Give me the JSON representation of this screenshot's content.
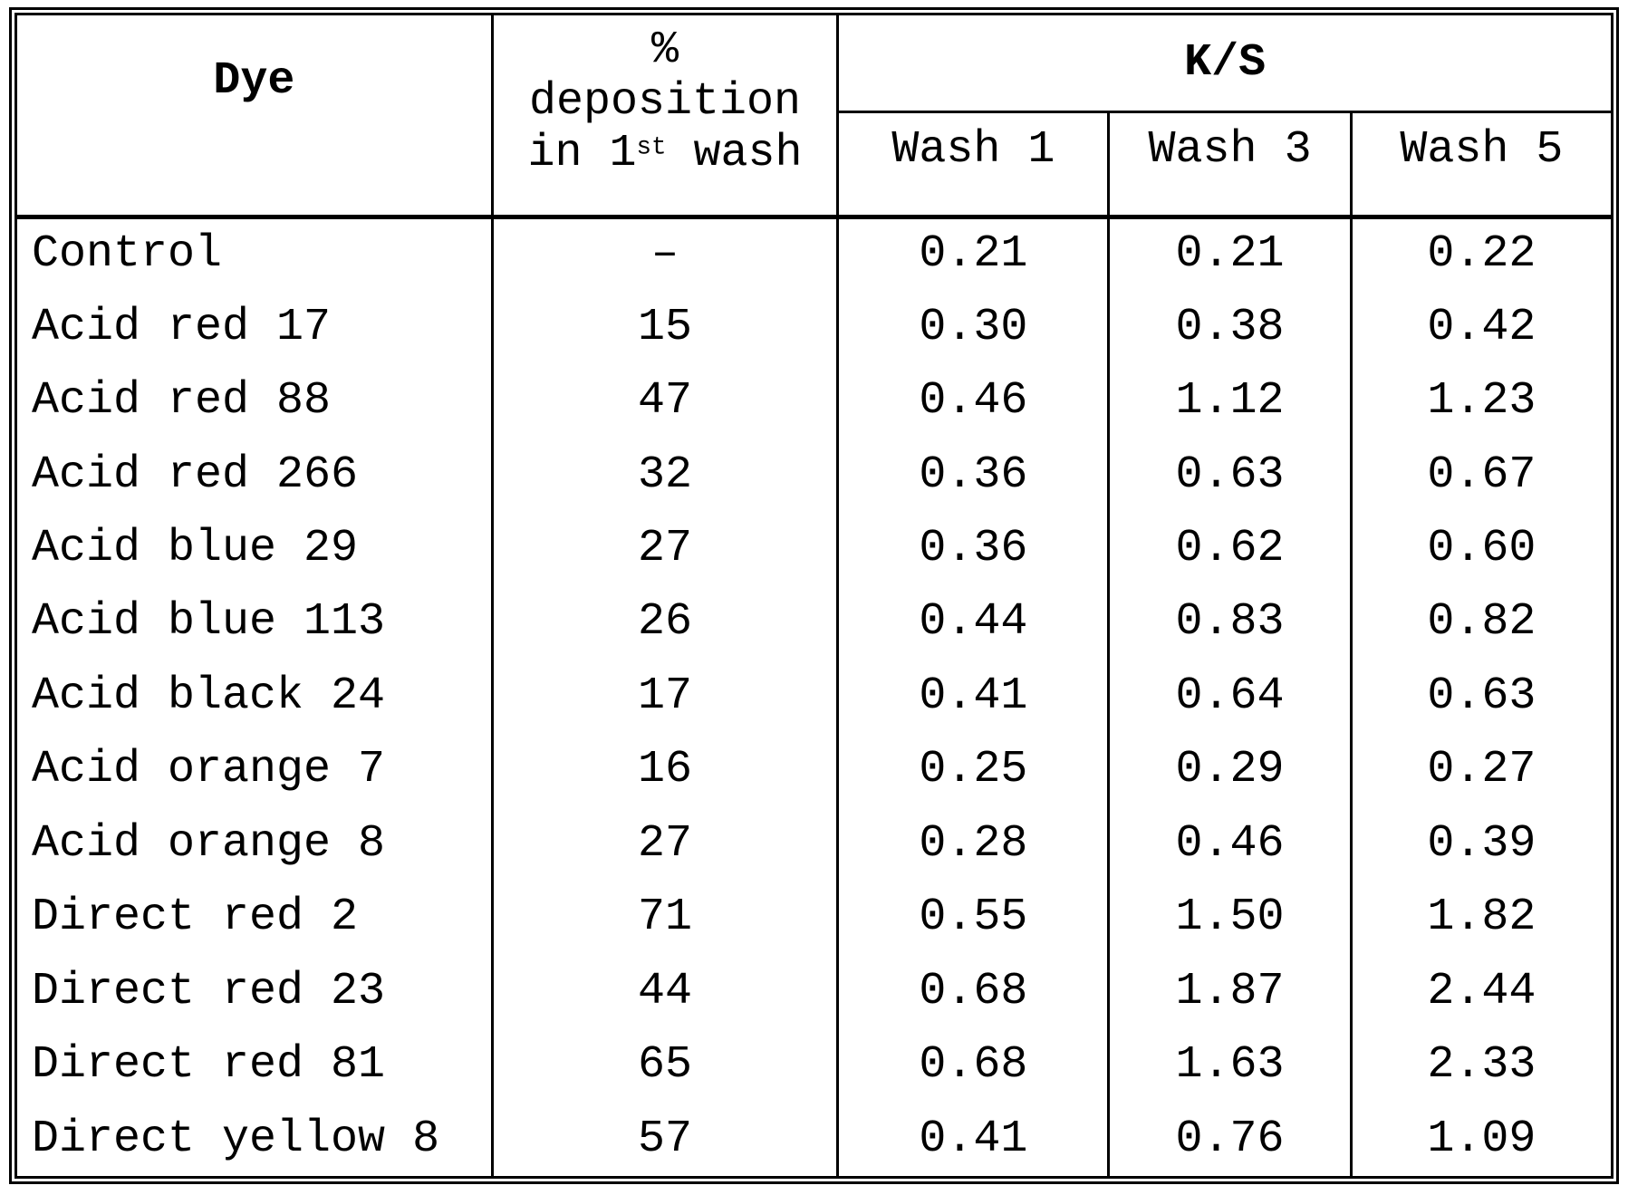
{
  "header": {
    "dye": "Dye",
    "deposition": {
      "line1": "%",
      "line2": "deposition",
      "line3_pre": "in 1",
      "line3_sup": "st",
      "line3_post": " wash"
    },
    "ks": "K/S",
    "washes": [
      "Wash 1",
      "Wash 3",
      "Wash 5"
    ]
  },
  "rows": [
    {
      "dye": "Control",
      "deposition": "–",
      "ks": [
        "0.21",
        "0.21",
        "0.22"
      ]
    },
    {
      "dye": "Acid red 17",
      "deposition": "15",
      "ks": [
        "0.30",
        "0.38",
        "0.42"
      ]
    },
    {
      "dye": "Acid red 88",
      "deposition": "47",
      "ks": [
        "0.46",
        "1.12",
        "1.23"
      ]
    },
    {
      "dye": "Acid red 266",
      "deposition": "32",
      "ks": [
        "0.36",
        "0.63",
        "0.67"
      ]
    },
    {
      "dye": "Acid blue 29",
      "deposition": "27",
      "ks": [
        "0.36",
        "0.62",
        "0.60"
      ]
    },
    {
      "dye": "Acid blue 113",
      "deposition": "26",
      "ks": [
        "0.44",
        "0.83",
        "0.82"
      ]
    },
    {
      "dye": "Acid black 24",
      "deposition": "17",
      "ks": [
        "0.41",
        "0.64",
        "0.63"
      ]
    },
    {
      "dye": "Acid orange 7",
      "deposition": "16",
      "ks": [
        "0.25",
        "0.29",
        "0.27"
      ]
    },
    {
      "dye": "Acid orange 8",
      "deposition": "27",
      "ks": [
        "0.28",
        "0.46",
        "0.39"
      ]
    },
    {
      "dye": "Direct red 2",
      "deposition": "71",
      "ks": [
        "0.55",
        "1.50",
        "1.82"
      ]
    },
    {
      "dye": "Direct red 23",
      "deposition": "44",
      "ks": [
        "0.68",
        "1.87",
        "2.44"
      ]
    },
    {
      "dye": "Direct red 81",
      "deposition": "65",
      "ks": [
        "0.68",
        "1.63",
        "2.33"
      ]
    },
    {
      "dye": "Direct yellow 8",
      "deposition": "57",
      "ks": [
        "0.41",
        "0.76",
        "1.09"
      ]
    }
  ],
  "colors": {
    "ink": "#000000",
    "paper": "#ffffff"
  }
}
